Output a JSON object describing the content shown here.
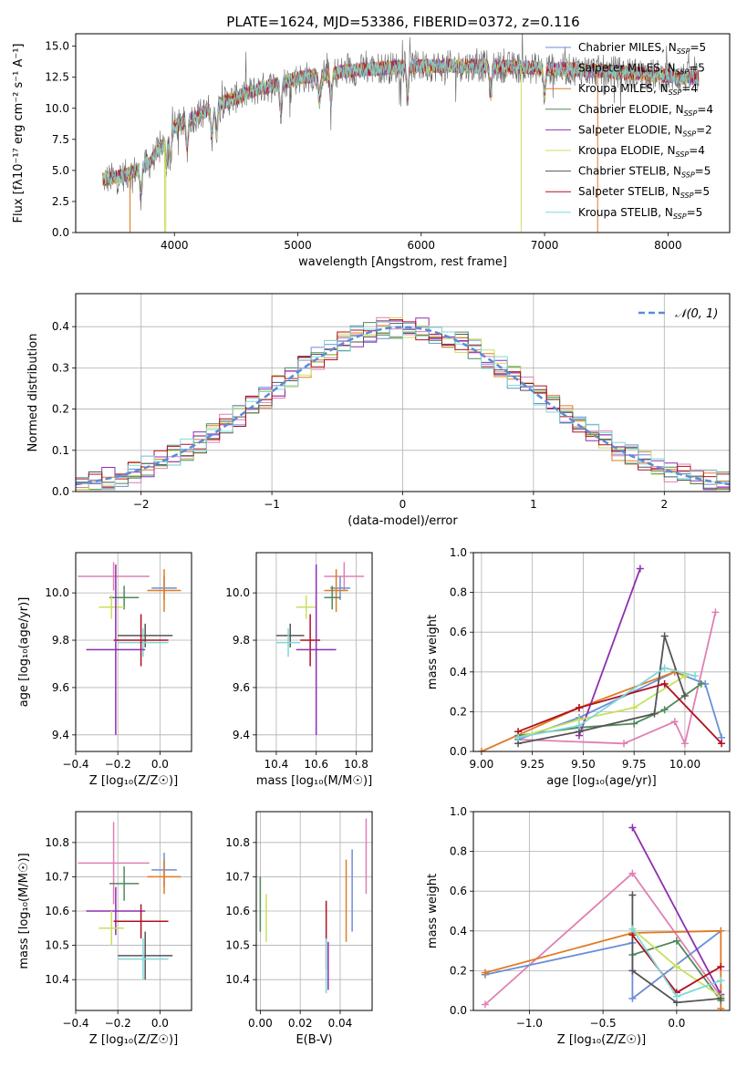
{
  "figure_title": "PLATE=1624, MJD=53386, FIBERID=0372, z=0.116",
  "colors": {
    "Chabrier MILES": "#6b8fd6",
    "Salpeter MILES": "#e07fb4",
    "Kroupa MILES": "#e07b22",
    "Chabrier ELODIE": "#4f8a5a",
    "Salpeter ELODIE": "#8f2fb0",
    "Kroupa ELODIE": "#c8e060",
    "Chabrier STELIB": "#555555",
    "Salpeter STELIB": "#b01020",
    "Kroupa STELIB": "#7fd8d8",
    "gauss": "#5b8bd8"
  },
  "chart_data": [
    {
      "id": "spectrum",
      "type": "line",
      "xlabel": "wavelength [Angstrom, rest frame]",
      "ylabel": "Flux [fλ10⁻¹⁷ erg cm⁻² s⁻¹ A⁻¹]",
      "xlim": [
        3200,
        8500
      ],
      "ylim": [
        0,
        16
      ],
      "xticks": [
        "4000",
        "5000",
        "6000",
        "7000",
        "8000"
      ],
      "yticks": [
        "0.0",
        "2.5",
        "5.0",
        "7.5",
        "10.0",
        "12.5",
        "15.0"
      ],
      "legend_position": "right",
      "grid": false,
      "legend": [
        {
          "key": "Chabrier MILES",
          "label": "Chabrier MILES, NSSP=5"
        },
        {
          "key": "Salpeter MILES",
          "label": "Salpeter MILES, NSSP=5"
        },
        {
          "key": "Kroupa MILES",
          "label": "Kroupa MILES, NSSP=4"
        },
        {
          "key": "Chabrier ELODIE",
          "label": "Chabrier ELODIE, NSSP=4"
        },
        {
          "key": "Salpeter ELODIE",
          "label": "Salpeter ELODIE, NSSP=2"
        },
        {
          "key": "Kroupa ELODIE",
          "label": "Kroupa ELODIE, NSSP=4"
        },
        {
          "key": "Chabrier STELIB",
          "label": "Chabrier STELIB, NSSP=5"
        },
        {
          "key": "Salpeter STELIB",
          "label": "Salpeter STELIB, NSSP=5"
        },
        {
          "key": "Kroupa STELIB",
          "label": "Kroupa STELIB, NSSP=5"
        }
      ],
      "continuum": {
        "x": [
          3400,
          3600,
          3800,
          3900,
          4000,
          4200,
          4400,
          4700,
          5000,
          5300,
          5600,
          6000,
          6500,
          7000,
          7500,
          8000,
          8250
        ],
        "y": [
          4.2,
          4.6,
          5.6,
          7.0,
          8.5,
          9.5,
          10.5,
          11.6,
          12.4,
          12.9,
          13.2,
          13.4,
          13.4,
          13.2,
          13.0,
          12.6,
          12.4
        ]
      },
      "dropouts_x": [
        3640,
        3640,
        3920,
        3930,
        6810,
        7430
      ]
    },
    {
      "id": "residuals",
      "type": "line",
      "xlabel": "(data-model)/error",
      "ylabel": "Normed distribution",
      "xlim": [
        -2.5,
        2.5
      ],
      "ylim": [
        0,
        0.48
      ],
      "xticks": [
        -2,
        -1,
        0,
        1,
        2
      ],
      "xtick_labels": [
        "−2",
        "−1",
        "0",
        "1",
        "2"
      ],
      "yticks": [
        0.0,
        0.1,
        0.2,
        0.3,
        0.4
      ],
      "ytick_labels": [
        "0.0",
        "0.1",
        "0.2",
        "0.3",
        "0.4"
      ],
      "grid": true,
      "legend": "𝒩(0, 1)",
      "legend_position": "top-right",
      "bin_width": 0.1,
      "gaussian": {
        "mean": 0,
        "sigma": 1
      }
    },
    {
      "id": "age_vs_Z",
      "type": "scatter",
      "xlabel": "Z [log₁₀(Z/Z☉)]",
      "ylabel": "age  [log₁₀(age/yr)]",
      "xlim": [
        -0.4,
        0.15
      ],
      "ylim": [
        9.33,
        10.17
      ],
      "xticks": [
        -0.4,
        -0.2,
        0.0
      ],
      "xtick_labels": [
        "−0.4",
        "−0.2",
        "0.0"
      ],
      "yticks": [
        9.4,
        9.6,
        9.8,
        10.0
      ],
      "ytick_labels": [
        "9.4",
        "9.6",
        "9.8",
        "10.0"
      ],
      "grid": true,
      "errorbars": [
        {
          "key": "Salpeter MILES",
          "x": -0.22,
          "xerr": 0.17,
          "y": 10.07,
          "yerr": 0.06
        },
        {
          "key": "Chabrier MILES",
          "x": 0.02,
          "xerr": 0.06,
          "y": 10.02,
          "yerr": 0.05
        },
        {
          "key": "Kroupa MILES",
          "x": 0.02,
          "xerr": 0.08,
          "y": 10.01,
          "yerr": 0.09
        },
        {
          "key": "Chabrier ELODIE",
          "x": -0.17,
          "xerr": 0.07,
          "y": 9.98,
          "yerr": 0.05
        },
        {
          "key": "Kroupa ELODIE",
          "x": -0.23,
          "xerr": 0.06,
          "y": 9.94,
          "yerr": 0.05
        },
        {
          "key": "Chabrier STELIB",
          "x": -0.07,
          "xerr": 0.13,
          "y": 9.82,
          "yerr": 0.05
        },
        {
          "key": "Kroupa STELIB",
          "x": -0.08,
          "xerr": 0.12,
          "y": 9.79,
          "yerr": 0.06
        },
        {
          "key": "Salpeter STELIB",
          "x": -0.09,
          "xerr": 0.13,
          "y": 9.8,
          "yerr": 0.11
        },
        {
          "key": "Salpeter ELODIE",
          "x": -0.21,
          "xerr": 0.14,
          "y": 9.76,
          "yerr": 0.36
        }
      ]
    },
    {
      "id": "age_vs_mass",
      "type": "scatter",
      "xlabel": "mass [log₁₀(M/M☉)]",
      "ylabel": "",
      "xlim": [
        10.3,
        10.88
      ],
      "ylim": [
        9.33,
        10.17
      ],
      "xticks": [
        10.4,
        10.6,
        10.8
      ],
      "xtick_labels": [
        "10.4",
        "10.6",
        "10.8"
      ],
      "yticks": [
        9.4,
        9.6,
        9.8,
        10.0
      ],
      "ytick_labels": [
        "9.4",
        "9.6",
        "9.8",
        "10.0"
      ],
      "grid": true,
      "errorbars": [
        {
          "key": "Salpeter MILES",
          "x": 10.74,
          "xerr": 0.1,
          "y": 10.07,
          "yerr": 0.06
        },
        {
          "key": "Chabrier MILES",
          "x": 10.72,
          "xerr": 0.05,
          "y": 10.02,
          "yerr": 0.05
        },
        {
          "key": "Kroupa MILES",
          "x": 10.7,
          "xerr": 0.06,
          "y": 10.01,
          "yerr": 0.09
        },
        {
          "key": "Chabrier ELODIE",
          "x": 10.68,
          "xerr": 0.04,
          "y": 9.98,
          "yerr": 0.05
        },
        {
          "key": "Kroupa ELODIE",
          "x": 10.55,
          "xerr": 0.05,
          "y": 9.94,
          "yerr": 0.05
        },
        {
          "key": "Chabrier STELIB",
          "x": 10.47,
          "xerr": 0.07,
          "y": 9.82,
          "yerr": 0.05
        },
        {
          "key": "Kroupa STELIB",
          "x": 10.46,
          "xerr": 0.06,
          "y": 9.79,
          "yerr": 0.06
        },
        {
          "key": "Salpeter STELIB",
          "x": 10.57,
          "xerr": 0.05,
          "y": 9.8,
          "yerr": 0.11
        },
        {
          "key": "Salpeter ELODIE",
          "x": 10.6,
          "xerr": 0.1,
          "y": 9.76,
          "yerr": 0.36
        }
      ]
    },
    {
      "id": "weight_vs_age",
      "type": "line",
      "xlabel": "age  [log₁₀(age/yr)]",
      "ylabel": "mass weight",
      "xlim": [
        8.96,
        10.22
      ],
      "ylim": [
        0,
        1.0
      ],
      "xticks": [
        9.0,
        9.25,
        9.5,
        9.75,
        10.0
      ],
      "xtick_labels": [
        "9.00",
        "9.25",
        "9.50",
        "9.75",
        "10.00"
      ],
      "yticks": [
        0.0,
        0.2,
        0.4,
        0.6,
        0.8,
        1.0
      ],
      "ytick_labels": [
        "0.0",
        "0.2",
        "0.4",
        "0.6",
        "0.8",
        "1.0"
      ],
      "grid": true,
      "series": [
        {
          "key": "Salpeter MILES",
          "x": [
            9.18,
            9.7,
            9.95,
            10.0,
            10.15
          ],
          "y": [
            0.06,
            0.04,
            0.15,
            0.04,
            0.7
          ]
        },
        {
          "key": "Chabrier MILES",
          "x": [
            9.18,
            9.48,
            9.95,
            10.1,
            10.18
          ],
          "y": [
            0.06,
            0.17,
            0.4,
            0.34,
            0.07
          ]
        },
        {
          "key": "Kroupa MILES",
          "x": [
            9.0,
            9.48,
            9.95,
            10.0
          ],
          "y": [
            0.0,
            0.22,
            0.4,
            0.38
          ]
        },
        {
          "key": "Chabrier ELODIE",
          "x": [
            9.18,
            9.48,
            9.75,
            9.9,
            10.08
          ],
          "y": [
            0.08,
            0.12,
            0.14,
            0.21,
            0.34
          ]
        },
        {
          "key": "Salpeter ELODIE",
          "x": [
            9.48,
            9.78
          ],
          "y": [
            0.08,
            0.92
          ]
        },
        {
          "key": "Kroupa ELODIE",
          "x": [
            9.18,
            9.48,
            9.75,
            10.0
          ],
          "y": [
            0.07,
            0.16,
            0.22,
            0.38
          ]
        },
        {
          "key": "Chabrier STELIB",
          "x": [
            9.18,
            9.48,
            9.85,
            9.9,
            10.0
          ],
          "y": [
            0.04,
            0.1,
            0.19,
            0.58,
            0.28
          ]
        },
        {
          "key": "Salpeter STELIB",
          "x": [
            9.18,
            9.48,
            9.9,
            10.18
          ],
          "y": [
            0.1,
            0.22,
            0.34,
            0.04
          ]
        },
        {
          "key": "Kroupa STELIB",
          "x": [
            9.18,
            9.48,
            9.9,
            10.05
          ],
          "y": [
            0.07,
            0.13,
            0.42,
            0.38
          ]
        }
      ]
    },
    {
      "id": "mass_vs_Z",
      "type": "scatter",
      "xlabel": "Z [log₁₀(Z/Z☉)]",
      "ylabel": "mass [log₁₀(M/M☉)]",
      "xlim": [
        -0.4,
        0.15
      ],
      "ylim": [
        10.31,
        10.89
      ],
      "xticks": [
        -0.4,
        -0.2,
        0.0
      ],
      "xtick_labels": [
        "−0.4",
        "−0.2",
        "0.0"
      ],
      "yticks": [
        10.4,
        10.5,
        10.6,
        10.7,
        10.8
      ],
      "ytick_labels": [
        "10.4",
        "10.5",
        "10.6",
        "10.7",
        "10.8"
      ],
      "grid": true,
      "errorbars": [
        {
          "key": "Salpeter MILES",
          "x": -0.22,
          "xerr": 0.17,
          "y": 10.74,
          "yerr": 0.12
        },
        {
          "key": "Chabrier MILES",
          "x": 0.02,
          "xerr": 0.06,
          "y": 10.72,
          "yerr": 0.05
        },
        {
          "key": "Kroupa MILES",
          "x": 0.02,
          "xerr": 0.08,
          "y": 10.7,
          "yerr": 0.05
        },
        {
          "key": "Chabrier ELODIE",
          "x": -0.17,
          "xerr": 0.07,
          "y": 10.68,
          "yerr": 0.05
        },
        {
          "key": "Salpeter ELODIE",
          "x": -0.21,
          "xerr": 0.14,
          "y": 10.6,
          "yerr": 0.07
        },
        {
          "key": "Salpeter STELIB",
          "x": -0.09,
          "xerr": 0.13,
          "y": 10.57,
          "yerr": 0.05
        },
        {
          "key": "Kroupa ELODIE",
          "x": -0.23,
          "xerr": 0.06,
          "y": 10.55,
          "yerr": 0.05
        },
        {
          "key": "Chabrier STELIB",
          "x": -0.07,
          "xerr": 0.13,
          "y": 10.47,
          "yerr": 0.07
        },
        {
          "key": "Kroupa STELIB",
          "x": -0.08,
          "xerr": 0.12,
          "y": 10.46,
          "yerr": 0.06
        }
      ]
    },
    {
      "id": "mass_vs_ebv",
      "type": "scatter",
      "xlabel": "E(B-V)",
      "ylabel": "",
      "xlim": [
        -0.002,
        0.056
      ],
      "ylim": [
        10.31,
        10.89
      ],
      "xticks": [
        0.0,
        0.02,
        0.04
      ],
      "xtick_labels": [
        "0.00",
        "0.02",
        "0.04"
      ],
      "yticks": [
        10.4,
        10.5,
        10.6,
        10.7,
        10.8
      ],
      "ytick_labels": [
        "10.4",
        "10.5",
        "10.6",
        "10.7",
        "10.8"
      ],
      "grid": true,
      "errorbars": [
        {
          "key": "Chabrier ELODIE",
          "x": 0.0,
          "y": 10.62,
          "yerr": 0.08
        },
        {
          "key": "Kroupa ELODIE",
          "x": 0.003,
          "y": 10.58,
          "yerr": 0.07
        },
        {
          "key": "Salpeter STELIB",
          "x": 0.033,
          "y": 10.53,
          "yerr": 0.1
        },
        {
          "key": "Kroupa STELIB",
          "x": 0.033,
          "y": 10.44,
          "yerr": 0.08
        },
        {
          "key": "Salpeter ELODIE",
          "x": 0.034,
          "y": 10.44,
          "yerr": 0.07
        },
        {
          "key": "Kroupa MILES",
          "x": 0.043,
          "y": 10.63,
          "yerr": 0.12
        },
        {
          "key": "Chabrier MILES",
          "x": 0.046,
          "y": 10.66,
          "yerr": 0.12
        },
        {
          "key": "Salpeter MILES",
          "x": 0.053,
          "y": 10.76,
          "yerr": 0.11
        }
      ]
    },
    {
      "id": "weight_vs_Z",
      "type": "line",
      "xlabel": "Z [log₁₀(Z/Z☉)]",
      "ylabel": "mass weight",
      "xlim": [
        -1.38,
        0.36
      ],
      "ylim": [
        0,
        1.0
      ],
      "xticks": [
        -1.0,
        -0.5,
        0.0
      ],
      "xtick_labels": [
        "−1.0",
        "−0.5",
        "0.0"
      ],
      "yticks": [
        0.0,
        0.2,
        0.4,
        0.6,
        0.8,
        1.0
      ],
      "ytick_labels": [
        "0.0",
        "0.2",
        "0.4",
        "0.6",
        "0.8",
        "1.0"
      ],
      "grid": true,
      "series": [
        {
          "key": "Salpeter MILES",
          "x": [
            -1.3,
            -0.3,
            0.3,
            0.3
          ],
          "y": [
            0.03,
            0.69,
            0.07,
            0.15
          ]
        },
        {
          "key": "Chabrier MILES",
          "x": [
            -1.3,
            -0.3,
            -0.3,
            0.3
          ],
          "y": [
            0.18,
            0.34,
            0.06,
            0.4
          ]
        },
        {
          "key": "Kroupa MILES",
          "x": [
            -1.3,
            -0.3,
            0.3,
            0.3
          ],
          "y": [
            0.19,
            0.39,
            0.4,
            0.01
          ]
        },
        {
          "key": "Chabrier ELODIE",
          "x": [
            -0.3,
            0.0,
            0.3
          ],
          "y": [
            0.28,
            0.35,
            0.05
          ]
        },
        {
          "key": "Salpeter ELODIE",
          "x": [
            -0.3,
            0.3
          ],
          "y": [
            0.92,
            0.08
          ]
        },
        {
          "key": "Kroupa ELODIE",
          "x": [
            -0.3,
            0.0,
            0.3
          ],
          "y": [
            0.41,
            0.22,
            0.07
          ]
        },
        {
          "key": "Chabrier STELIB",
          "x": [
            -0.3,
            -0.3,
            0.0,
            0.3
          ],
          "y": [
            0.58,
            0.2,
            0.04,
            0.06
          ]
        },
        {
          "key": "Salpeter STELIB",
          "x": [
            -0.3,
            0.0,
            0.3
          ],
          "y": [
            0.38,
            0.09,
            0.22
          ]
        },
        {
          "key": "Kroupa STELIB",
          "x": [
            -0.3,
            0.0,
            0.3
          ],
          "y": [
            0.41,
            0.07,
            0.15
          ]
        }
      ]
    }
  ]
}
